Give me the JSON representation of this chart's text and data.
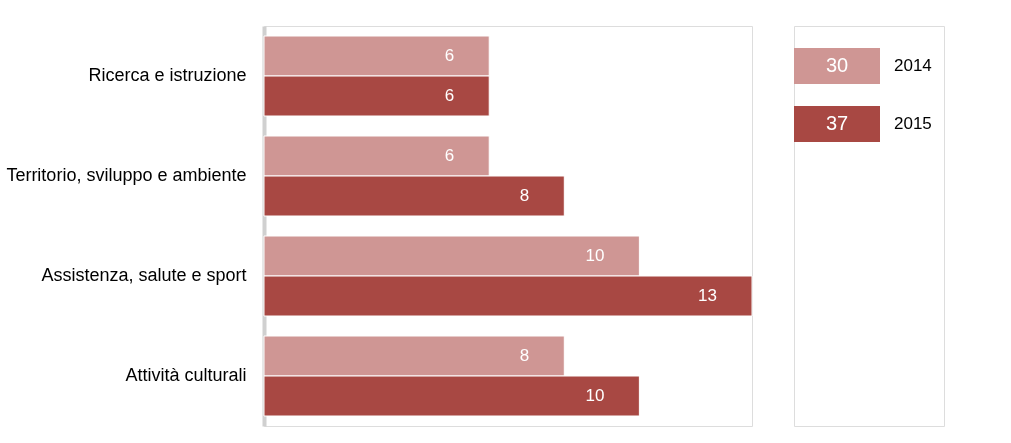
{
  "chart_data": {
    "type": "bar",
    "orientation": "horizontal",
    "categories": [
      "Ricerca e istruzione",
      "Territorio, sviluppo e ambiente",
      "Assistenza, salute e sport",
      "Attività culturali"
    ],
    "series": [
      {
        "name": "2014",
        "color": "#cf9694",
        "values": [
          6,
          6,
          10,
          8
        ]
      },
      {
        "name": "2015",
        "color": "#a84843",
        "values": [
          6,
          8,
          13,
          10
        ]
      }
    ],
    "annotations": [
      "30",
      "37"
    ],
    "data_labels": true,
    "legend": "top right"
  }
}
